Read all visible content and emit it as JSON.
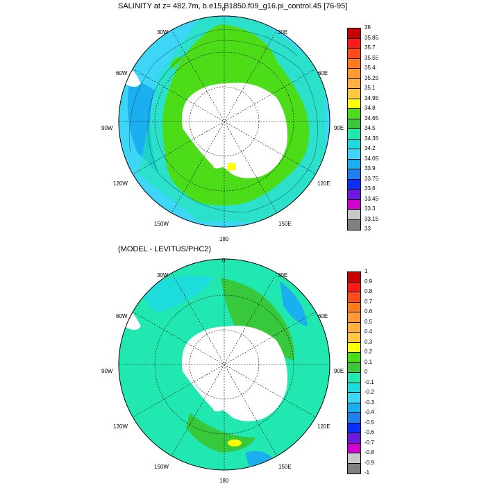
{
  "panels": [
    {
      "title": "SALINITY at z= 482.7m, b.e15.B1850.f09_g16.pi_control.45 [76-95]",
      "lon_labels": {
        "n": "0",
        "ne": "30E",
        "e1": "60E",
        "e": "90E",
        "se1": "120E",
        "se": "150E",
        "s": "180",
        "sw": "150W",
        "w1": "120W",
        "w": "90W",
        "nw1": "60W",
        "nw": "30W"
      },
      "colorbar": {
        "labels": [
          "36",
          "35.85",
          "35.7",
          "35.55",
          "35.4",
          "35.25",
          "35.1",
          "34.95",
          "34.8",
          "34.65",
          "34.5",
          "34.35",
          "34.2",
          "34.05",
          "33.9",
          "33.75",
          "33.6",
          "33.45",
          "33.3",
          "33.15",
          "33"
        ],
        "colors": [
          "#c80000",
          "#ff1a1a",
          "#ff4d1a",
          "#ff7a1a",
          "#ff9a33",
          "#ffb03a",
          "#ffc840",
          "#ffff00",
          "#4ddc18",
          "#37c83c",
          "#20e8b0",
          "#1cdcdc",
          "#3dd6f6",
          "#1ab0f0",
          "#1e80f0",
          "#0a30ff",
          "#6e18e0",
          "#d000d0",
          "#c8c8c8",
          "#808080"
        ]
      },
      "fill_colors": {
        "open_ocean": "#3dd6f6",
        "mid": "#20e8b0",
        "inner": "#4ddc18",
        "outer": "#1ab0f0",
        "land": "#ffffff"
      }
    },
    {
      "title": "(MODEL - LEVITUS/PHC2)",
      "lon_labels": {
        "n": "0",
        "ne": "30E",
        "e1": "60E",
        "e": "90E",
        "se1": "120E",
        "se": "150E",
        "s": "180",
        "sw": "150W",
        "w1": "120W",
        "w": "90W",
        "nw1": "60W",
        "nw": "30W"
      },
      "colorbar": {
        "labels": [
          "1",
          "0.9",
          "0.8",
          "0.7",
          "0.6",
          "0.5",
          "0.4",
          "0.3",
          "0.2",
          "0.1",
          "0",
          "-0.1",
          "-0.2",
          "-0.3",
          "-0.4",
          "-0.5",
          "-0.6",
          "-0.7",
          "-0.8",
          "-0.9",
          "-1"
        ],
        "colors": [
          "#c80000",
          "#ff1a1a",
          "#ff4d1a",
          "#ff7a1a",
          "#ff9a33",
          "#ffb03a",
          "#ffc840",
          "#ffff00",
          "#4ddc18",
          "#37c83c",
          "#20e8b0",
          "#1cdcdc",
          "#3dd6f6",
          "#1ab0f0",
          "#1e80f0",
          "#0a30ff",
          "#6e18e0",
          "#d000d0",
          "#c8c8c8",
          "#808080"
        ]
      },
      "fill_colors": {
        "open_ocean": "#20e8b0",
        "mid": "#1cdcdc",
        "inner": "#37c83c",
        "blue": "#1ab0f0",
        "yellow": "#ffff00",
        "land": "#ffffff"
      }
    }
  ]
}
